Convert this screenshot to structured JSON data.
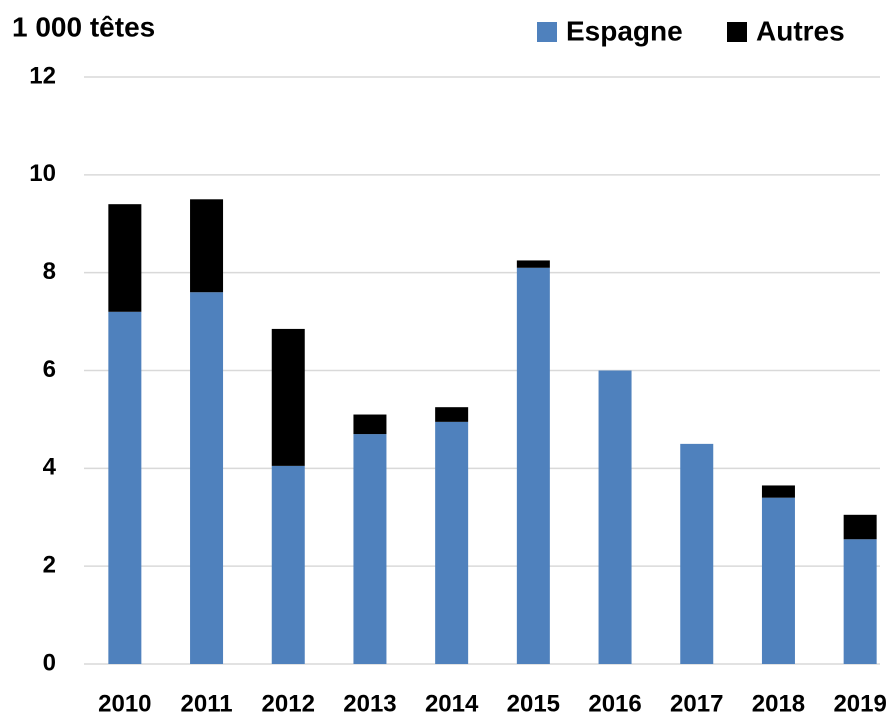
{
  "chart_data": {
    "type": "stacked_bar",
    "y_axis_label": "1 000 têtes",
    "categories": [
      "2010",
      "2011",
      "2012",
      "2013",
      "2014",
      "2015",
      "2016",
      "2017",
      "2018",
      "2019"
    ],
    "series": [
      {
        "name": "Espagne",
        "color": "#4f81bd",
        "values": [
          7.2,
          7.6,
          4.05,
          4.7,
          4.95,
          8.1,
          6,
          4.5,
          3.4,
          2.55
        ]
      },
      {
        "name": "Autres",
        "color": "#000000",
        "values": [
          2.2,
          1.9,
          2.8,
          0.4,
          0.3,
          0.15,
          0,
          0,
          0.25,
          0.5
        ]
      }
    ],
    "ylim": [
      0,
      12
    ],
    "yticks": [
      0,
      2,
      4,
      6,
      8,
      10,
      12
    ],
    "grid": true,
    "legend": "top-right"
  }
}
